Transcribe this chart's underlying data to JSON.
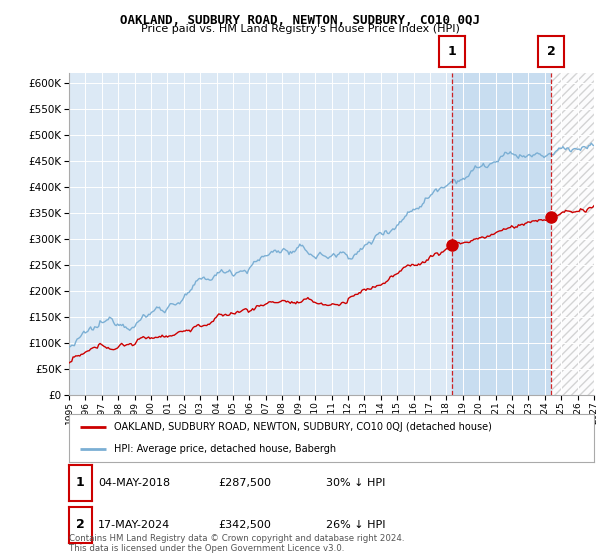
{
  "title": "OAKLAND, SUDBURY ROAD, NEWTON, SUDBURY, CO10 0QJ",
  "subtitle": "Price paid vs. HM Land Registry's House Price Index (HPI)",
  "ylim": [
    0,
    620000
  ],
  "ytick_vals": [
    0,
    50000,
    100000,
    150000,
    200000,
    250000,
    300000,
    350000,
    400000,
    450000,
    500000,
    550000,
    600000
  ],
  "hpi_color": "#7bafd4",
  "price_color": "#cc0000",
  "sale1_x": 2018.35,
  "sale1_y": 287500,
  "sale2_x": 2024.38,
  "sale2_y": 342500,
  "legend_property": "OAKLAND, SUDBURY ROAD, NEWTON, SUDBURY, CO10 0QJ (detached house)",
  "legend_hpi": "HPI: Average price, detached house, Babergh",
  "table_row1": [
    "1",
    "04-MAY-2018",
    "£287,500",
    "30% ↓ HPI"
  ],
  "table_row2": [
    "2",
    "17-MAY-2024",
    "£342,500",
    "26% ↓ HPI"
  ],
  "footnote": "Contains HM Land Registry data © Crown copyright and database right 2024.\nThis data is licensed under the Open Government Licence v3.0.",
  "background_color": "#ffffff",
  "plot_bg_color": "#dce9f5",
  "grid_color": "#ffffff",
  "shaded_between_color": "#c8ddf0",
  "hatch_color": "#bbbbbb",
  "xmin": 1995,
  "xmax": 2027
}
